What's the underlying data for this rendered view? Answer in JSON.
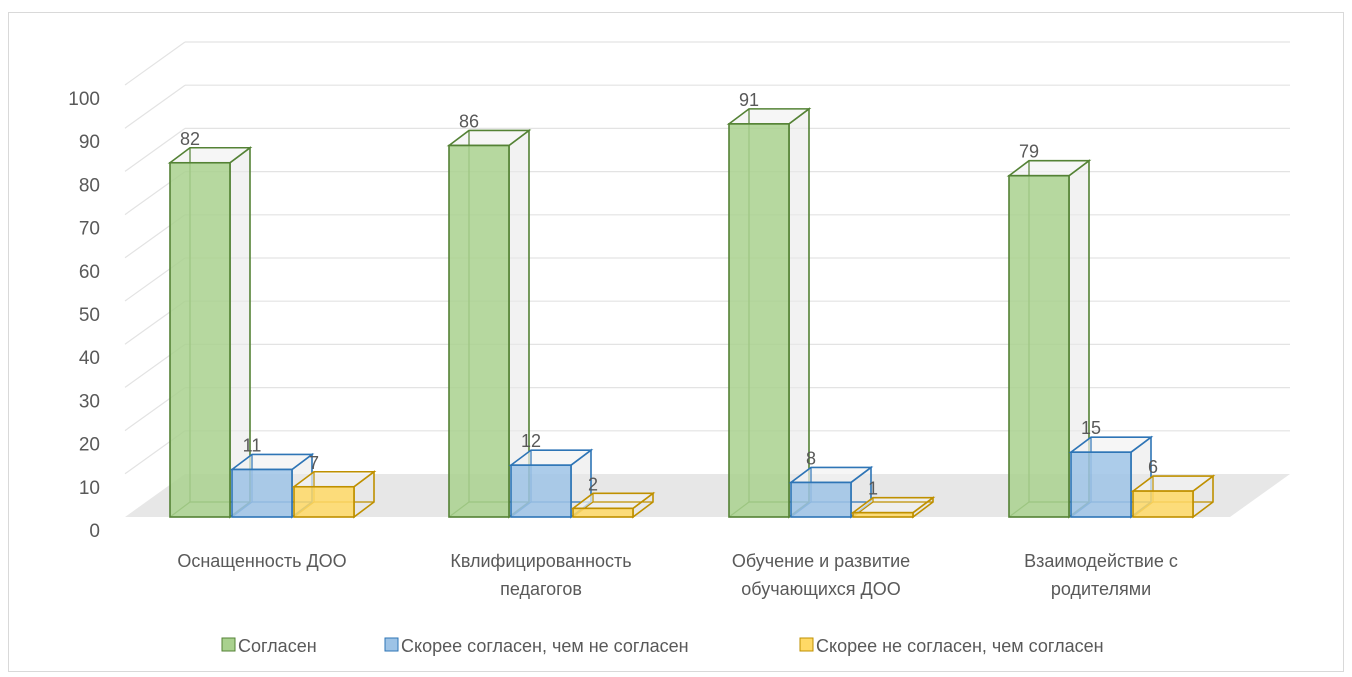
{
  "chart_data": {
    "type": "bar",
    "title": "",
    "xlabel": "",
    "ylabel": "",
    "ylim": [
      0,
      100
    ],
    "yticks": [
      0,
      10,
      20,
      30,
      40,
      50,
      60,
      70,
      80,
      90,
      100
    ],
    "grid": true,
    "legend_position": "bottom",
    "categories": [
      [
        "Оснащенность ДОО"
      ],
      [
        "Квлифицированность",
        "педагогов"
      ],
      [
        "Обучение и развитие",
        "обучающихся ДОО"
      ],
      [
        "Взаимодействие с",
        "родителями"
      ]
    ],
    "series": [
      {
        "name": "Согласен",
        "values": [
          82,
          86,
          91,
          79
        ],
        "color": "#a9d18e",
        "stroke": "#548235"
      },
      {
        "name": "Скорее согласен, чем не согласен",
        "values": [
          11,
          12,
          8,
          15
        ],
        "color": "#9dc3e6",
        "stroke": "#2e75b6"
      },
      {
        "name": "Скорее не согласен, чем согласен",
        "values": [
          7,
          2,
          1,
          6
        ],
        "color": "#ffd966",
        "stroke": "#bf9000"
      }
    ]
  }
}
